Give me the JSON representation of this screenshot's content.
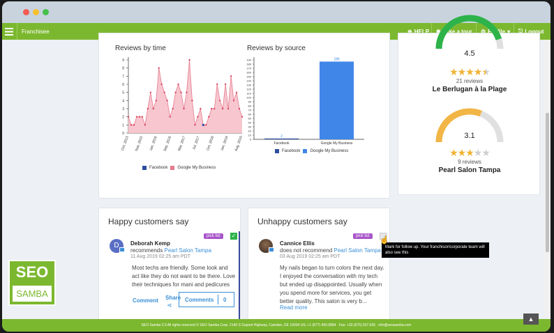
{
  "nav": {
    "brand": "Franchisee",
    "help": "HELP",
    "tour": "Take a tour",
    "profile": "Profile",
    "logout": "Logout"
  },
  "chart_time": {
    "title": "Reviews by time",
    "legend": [
      "Facebook",
      "Google My Business"
    ]
  },
  "chart_source": {
    "title": "Reviews by source",
    "legend": [
      "Facebook",
      "Google My Business"
    ]
  },
  "chart_data": [
    {
      "type": "area",
      "title": "Reviews by time",
      "ylim": [
        0,
        9
      ],
      "yticks": [
        "0",
        "1",
        "2",
        "3",
        "4",
        "5",
        "6",
        "7",
        "8",
        "9"
      ],
      "xticks": [
        "Oct, 2013",
        "Nov, 2015",
        "Jan, 2016",
        "Sep, 2016",
        "Mar, 2017",
        "Jul, 2017",
        "Oct, 2018",
        "Jan, 2019",
        "Aug, 2019"
      ],
      "series": [
        {
          "name": "Google My Business",
          "color": "#e57b8d",
          "values": [
            2,
            1,
            1,
            2,
            2,
            2,
            1,
            3,
            5,
            3,
            4,
            8,
            6,
            5,
            4,
            2,
            3,
            5,
            6,
            5,
            3,
            5,
            9,
            4,
            1,
            2,
            3,
            1,
            1,
            2,
            3,
            3,
            6,
            4,
            3,
            6,
            3,
            7,
            4,
            5,
            3,
            2
          ]
        },
        {
          "name": "Facebook",
          "color": "#2d4e9e",
          "points": [
            {
              "index": 27,
              "value": 1
            }
          ]
        }
      ]
    },
    {
      "type": "bar",
      "title": "Reviews by source",
      "categories": [
        "Facebook",
        "Google My Business"
      ],
      "values": [
        2,
        186
      ],
      "ylim": [
        0,
        190
      ],
      "yticks": [
        "0",
        "10",
        "20",
        "30",
        "40",
        "50",
        "60",
        "70",
        "80",
        "90",
        "100",
        "110",
        "120",
        "130",
        "140",
        "150",
        "160",
        "170",
        "180",
        "190"
      ],
      "colors": [
        "#2d4e9e",
        "#3f86e8"
      ]
    }
  ],
  "locations": [
    {
      "score": "4.5",
      "fraction": 0.9,
      "stars": 4.5,
      "reviews": "21 reviews",
      "name": "Le Berlugan à la Plage",
      "color": "#2db34a"
    },
    {
      "score": "3.1",
      "fraction": 0.62,
      "stars": 3,
      "reviews": "9 reviews",
      "name": "Pearl Salon Tampa",
      "color": "#f2b646"
    }
  ],
  "happy": {
    "title": "Happy customers say",
    "badge": "pick list",
    "name": "Deborah Kemp",
    "action": "recommends",
    "place": "Pearl Salon Tampa",
    "date": "11 Aug 2019 02:25 am PDT",
    "avatar": "D",
    "text": "Most techs are friendly. Some look and act like they do not want to be there. Love their techniques for mani and pedicures",
    "comment_link": "Comment",
    "share": "Share",
    "comments_btn": "Comments",
    "comments_count": "0"
  },
  "unhappy": {
    "title": "Unhappy customers say",
    "badge": "pick list",
    "name": "Cannice Ellis",
    "action": "does not recommend",
    "place": "Pearl Salon Tampa",
    "date": "03 Aug 2019 02:25 am PDT",
    "text": "My nails began to turn colors the next day. I enjoyed the conversation with my tech but ended up disappointed. Usually when you spend more for services, you get better quality. This salon is very b...",
    "more": "Read more",
    "tooltip": "Mark for follow up. Your franchisor/corporate team will also see this"
  },
  "logo": {
    "line1": "SEO",
    "line2": "SAMBA"
  },
  "footer": "SEO Samba 2.0  All rights reserved © SEO Samba Corp. 2140 S Dupont Highway, Camden, DE 19934 US; +1 (877) 450.9894 · Fax: +33 (675) 637.635 · info@seosamba.com",
  "colors": {
    "accent": "#7cb82f",
    "link": "#3a8fd6",
    "badge": "#a855c9"
  }
}
